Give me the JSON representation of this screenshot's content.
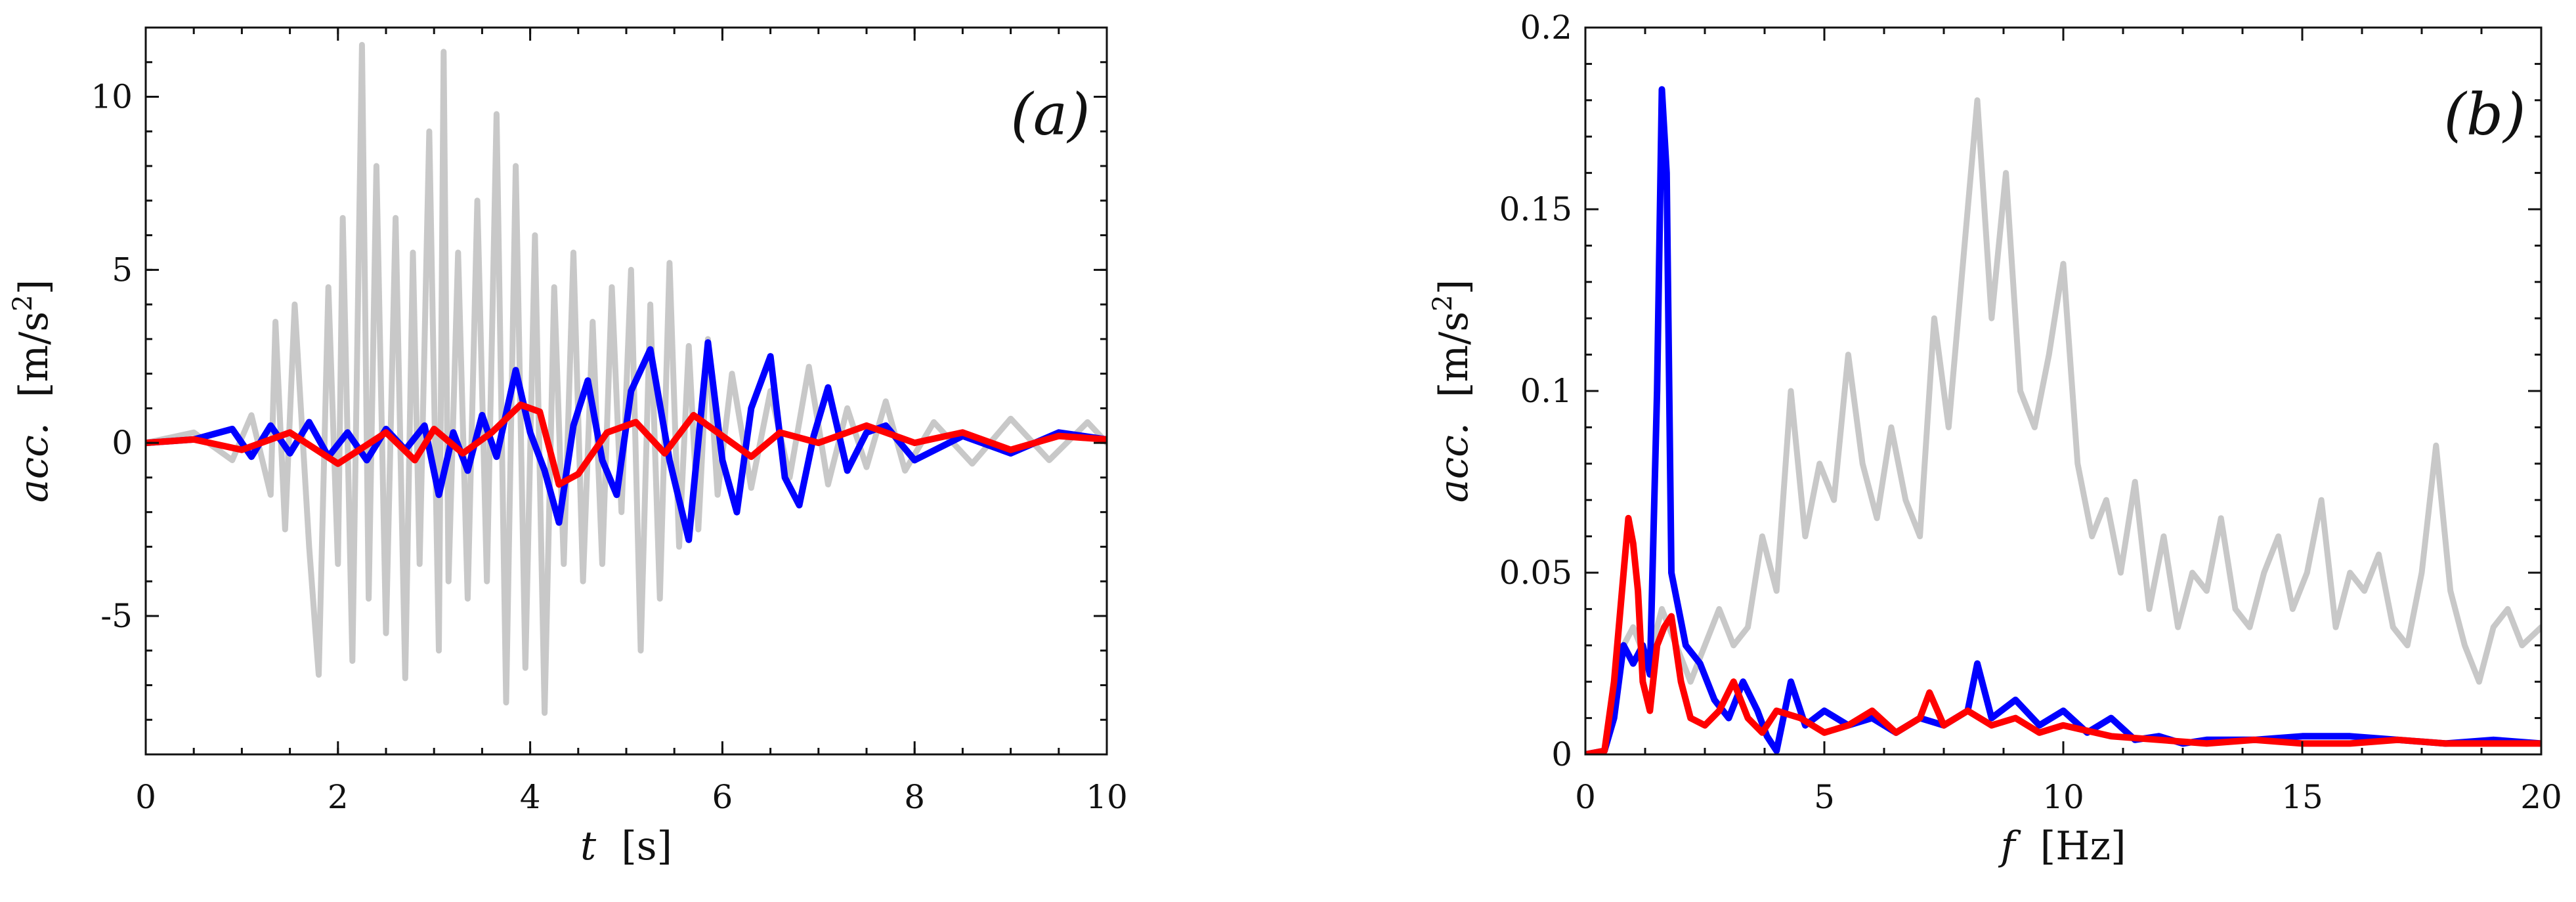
{
  "chart_data": [
    {
      "type": "line",
      "panel_label": "(a)",
      "xlabel_var": "t",
      "xlabel_unit": "[s]",
      "ylabel_var": "acc.",
      "ylabel_unit": "[m/s",
      "ylabel_sup": "2",
      "ylabel_close": "]",
      "xlim": [
        0,
        10
      ],
      "ylim": [
        -9,
        12
      ],
      "xticks": [
        0,
        2,
        4,
        6,
        8,
        10
      ],
      "yticks": [
        -5,
        0,
        5,
        10
      ],
      "xtick_labels": [
        "0",
        "2",
        "4",
        "6",
        "8",
        "10"
      ],
      "ytick_labels": [
        "-5",
        "0",
        "5",
        "10"
      ],
      "grid": false,
      "series": [
        {
          "name": "gray",
          "color": "#c8c8c8",
          "x": [
            0,
            0.5,
            0.9,
            1.1,
            1.3,
            1.35,
            1.45,
            1.55,
            1.7,
            1.8,
            1.9,
            2.0,
            2.05,
            2.15,
            2.25,
            2.32,
            2.4,
            2.5,
            2.6,
            2.7,
            2.78,
            2.85,
            2.95,
            3.05,
            3.1,
            3.15,
            3.25,
            3.35,
            3.45,
            3.55,
            3.65,
            3.75,
            3.85,
            3.95,
            4.05,
            4.15,
            4.25,
            4.35,
            4.45,
            4.55,
            4.65,
            4.75,
            4.85,
            4.95,
            5.05,
            5.15,
            5.25,
            5.35,
            5.45,
            5.55,
            5.65,
            5.75,
            5.85,
            5.95,
            6.1,
            6.3,
            6.5,
            6.7,
            6.9,
            7.1,
            7.3,
            7.5,
            7.7,
            7.9,
            8.2,
            8.6,
            9.0,
            9.4,
            9.8,
            10
          ],
          "values": [
            0,
            0.3,
            -0.5,
            0.8,
            -1.5,
            3.5,
            -2.5,
            4,
            -3,
            -6.7,
            4.5,
            -3.5,
            6.5,
            -6.3,
            11.5,
            -4.5,
            8,
            -5.5,
            6.5,
            -6.8,
            5.5,
            -3.5,
            9,
            -6,
            11.3,
            -4,
            5.5,
            -4.5,
            7,
            -4,
            9.5,
            -7.5,
            8,
            -6.5,
            6,
            -7.8,
            4.5,
            -3.5,
            5.5,
            -4,
            3.5,
            -3.5,
            4.5,
            -2,
            5,
            -6,
            4,
            -4.5,
            5.2,
            -3,
            2.8,
            -2.5,
            3,
            -1.5,
            2,
            -1.3,
            1.5,
            -1,
            2.2,
            -1.2,
            1,
            -0.7,
            1.2,
            -0.8,
            0.6,
            -0.6,
            0.7,
            -0.5,
            0.6,
            0
          ]
        },
        {
          "name": "blue",
          "color": "#0000ff",
          "x": [
            0,
            0.5,
            0.9,
            1.1,
            1.3,
            1.5,
            1.7,
            1.9,
            2.1,
            2.3,
            2.5,
            2.7,
            2.9,
            3.05,
            3.2,
            3.35,
            3.5,
            3.65,
            3.85,
            4.0,
            4.15,
            4.3,
            4.45,
            4.6,
            4.75,
            4.9,
            5.05,
            5.25,
            5.45,
            5.65,
            5.85,
            6.0,
            6.15,
            6.3,
            6.5,
            6.65,
            6.8,
            6.95,
            7.1,
            7.3,
            7.5,
            7.7,
            8.0,
            8.5,
            9.0,
            9.5,
            10
          ],
          "values": [
            0,
            0.1,
            0.4,
            -0.4,
            0.5,
            -0.3,
            0.6,
            -0.4,
            0.3,
            -0.5,
            0.4,
            -0.2,
            0.5,
            -1.5,
            0.3,
            -0.8,
            0.8,
            -0.4,
            2.1,
            0.3,
            -0.8,
            -2.3,
            0.5,
            1.8,
            -0.5,
            -1.5,
            1.5,
            2.7,
            -0.5,
            -2.8,
            2.9,
            -0.5,
            -2.0,
            1.0,
            2.5,
            -1.0,
            -1.8,
            0.2,
            1.6,
            -0.8,
            0.3,
            0.5,
            -0.5,
            0.2,
            -0.3,
            0.3,
            0.1
          ]
        },
        {
          "name": "red",
          "color": "#ff0000",
          "x": [
            0,
            0.5,
            1.0,
            1.5,
            2.0,
            2.5,
            2.8,
            3.0,
            3.3,
            3.6,
            3.9,
            4.1,
            4.3,
            4.5,
            4.8,
            5.1,
            5.4,
            5.7,
            6.0,
            6.3,
            6.6,
            7.0,
            7.5,
            8.0,
            8.5,
            9.0,
            9.5,
            10
          ],
          "values": [
            0,
            0.1,
            -0.2,
            0.3,
            -0.6,
            0.3,
            -0.5,
            0.4,
            -0.3,
            0.3,
            1.1,
            0.9,
            -1.2,
            -0.9,
            0.3,
            0.6,
            -0.3,
            0.8,
            0.2,
            -0.4,
            0.3,
            0.0,
            0.5,
            0.0,
            0.3,
            -0.2,
            0.2,
            0.1
          ]
        }
      ]
    },
    {
      "type": "line",
      "panel_label": "(b)",
      "xlabel_var": "f",
      "xlabel_unit": "[Hz]",
      "ylabel_var": "acc.",
      "ylabel_unit": "[m/s",
      "ylabel_sup": "2",
      "ylabel_close": "]",
      "xlim": [
        0,
        20
      ],
      "ylim": [
        0,
        0.2
      ],
      "xticks": [
        0,
        5,
        10,
        15,
        20
      ],
      "yticks": [
        0,
        0.05,
        0.1,
        0.15,
        0.2
      ],
      "xtick_labels": [
        "0",
        "5",
        "10",
        "15",
        "20"
      ],
      "ytick_labels": [
        "0",
        "0.05",
        "0.1",
        "0.15",
        "0.2"
      ],
      "grid": false,
      "series": [
        {
          "name": "gray",
          "color": "#c8c8c8",
          "x": [
            0,
            0.4,
            0.6,
            0.8,
            1.0,
            1.3,
            1.6,
            1.9,
            2.2,
            2.5,
            2.8,
            3.1,
            3.4,
            3.7,
            4.0,
            4.3,
            4.6,
            4.9,
            5.2,
            5.5,
            5.8,
            6.1,
            6.4,
            6.7,
            7.0,
            7.3,
            7.6,
            7.9,
            8.2,
            8.5,
            8.8,
            9.1,
            9.4,
            9.7,
            10.0,
            10.3,
            10.6,
            10.9,
            11.2,
            11.5,
            11.8,
            12.1,
            12.4,
            12.7,
            13.0,
            13.3,
            13.6,
            13.9,
            14.2,
            14.5,
            14.8,
            15.1,
            15.4,
            15.7,
            16.0,
            16.3,
            16.6,
            16.9,
            17.2,
            17.5,
            17.8,
            18.1,
            18.4,
            18.7,
            19.0,
            19.3,
            19.6,
            20
          ],
          "values": [
            0,
            0.001,
            0.01,
            0.03,
            0.035,
            0.025,
            0.04,
            0.03,
            0.02,
            0.03,
            0.04,
            0.03,
            0.035,
            0.06,
            0.045,
            0.1,
            0.06,
            0.08,
            0.07,
            0.11,
            0.08,
            0.065,
            0.09,
            0.07,
            0.06,
            0.12,
            0.09,
            0.135,
            0.18,
            0.12,
            0.16,
            0.1,
            0.09,
            0.11,
            0.135,
            0.08,
            0.06,
            0.07,
            0.05,
            0.075,
            0.04,
            0.06,
            0.035,
            0.05,
            0.045,
            0.065,
            0.04,
            0.035,
            0.05,
            0.06,
            0.04,
            0.05,
            0.07,
            0.035,
            0.05,
            0.045,
            0.055,
            0.035,
            0.03,
            0.05,
            0.085,
            0.045,
            0.03,
            0.02,
            0.035,
            0.04,
            0.03,
            0.035
          ]
        },
        {
          "name": "blue",
          "color": "#0000ff",
          "x": [
            0,
            0.4,
            0.6,
            0.8,
            1.0,
            1.2,
            1.35,
            1.5,
            1.6,
            1.7,
            1.8,
            1.95,
            2.1,
            2.4,
            2.7,
            3.0,
            3.3,
            3.6,
            3.8,
            4.0,
            4.3,
            4.6,
            5.0,
            5.5,
            6.0,
            6.5,
            7.0,
            7.5,
            8.0,
            8.2,
            8.5,
            9.0,
            9.5,
            10.0,
            10.5,
            11.0,
            11.5,
            12.0,
            12.5,
            13.0,
            14.0,
            15.0,
            16.0,
            17.0,
            18.0,
            19.0,
            20
          ],
          "values": [
            0,
            0.001,
            0.01,
            0.03,
            0.025,
            0.03,
            0.022,
            0.1,
            0.183,
            0.16,
            0.05,
            0.04,
            0.03,
            0.025,
            0.015,
            0.01,
            0.02,
            0.012,
            0.005,
            0.001,
            0.02,
            0.008,
            0.012,
            0.008,
            0.01,
            0.006,
            0.01,
            0.008,
            0.012,
            0.025,
            0.01,
            0.015,
            0.008,
            0.012,
            0.006,
            0.01,
            0.004,
            0.005,
            0.003,
            0.004,
            0.004,
            0.005,
            0.005,
            0.004,
            0.003,
            0.004,
            0.003
          ]
        },
        {
          "name": "red",
          "color": "#ff0000",
          "x": [
            0,
            0.4,
            0.6,
            0.8,
            0.9,
            1.0,
            1.1,
            1.2,
            1.35,
            1.5,
            1.65,
            1.8,
            2.0,
            2.2,
            2.5,
            2.8,
            3.1,
            3.4,
            3.7,
            4.0,
            4.5,
            5.0,
            5.5,
            6.0,
            6.5,
            7.0,
            7.2,
            7.5,
            8.0,
            8.5,
            9.0,
            9.5,
            10.0,
            11.0,
            12.0,
            13.0,
            14.0,
            15.0,
            16.0,
            17.0,
            18.0,
            19.0,
            20
          ],
          "values": [
            0,
            0.001,
            0.02,
            0.05,
            0.065,
            0.058,
            0.045,
            0.02,
            0.012,
            0.03,
            0.035,
            0.038,
            0.02,
            0.01,
            0.008,
            0.012,
            0.02,
            0.01,
            0.006,
            0.012,
            0.01,
            0.006,
            0.008,
            0.012,
            0.006,
            0.01,
            0.017,
            0.008,
            0.012,
            0.008,
            0.01,
            0.006,
            0.008,
            0.005,
            0.004,
            0.003,
            0.004,
            0.003,
            0.003,
            0.004,
            0.003,
            0.003,
            0.003
          ]
        }
      ]
    }
  ]
}
